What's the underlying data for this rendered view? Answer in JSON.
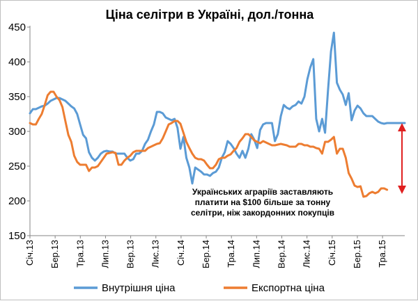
{
  "chart_data": {
    "type": "line",
    "title": "Ціна селітри в Україні, дол./тонна",
    "xlabel": "",
    "ylabel": "",
    "ylim": [
      150,
      450
    ],
    "y_ticks": [
      150,
      200,
      250,
      300,
      350,
      400,
      450
    ],
    "grid": false,
    "legend_position": "bottom",
    "x_tick_labels": [
      "Січ.13",
      "Бер.13",
      "Тра.13",
      "Лип.13",
      "Вер.13",
      "Лис.13",
      "Січ.14",
      "Бер.14",
      "Тра.14",
      "Лип.14",
      "Вер.14",
      "Лис.14",
      "Січ.15",
      "Бер.15",
      "Тра.15"
    ],
    "x_range_weeks": [
      0,
      127
    ],
    "series": [
      {
        "name": "Внутрішня ціна",
        "color": "#5B9BD5",
        "x": [
          0,
          1,
          2,
          3,
          4,
          5,
          6,
          7,
          8,
          9,
          10,
          11,
          12,
          13,
          14,
          15,
          16,
          17,
          18,
          19,
          20,
          21,
          22,
          23,
          24,
          25,
          26,
          27,
          28,
          29,
          30,
          31,
          32,
          33,
          34,
          35,
          36,
          37,
          38,
          39,
          40,
          41,
          42,
          43,
          44,
          45,
          46,
          47,
          48,
          49,
          50,
          51,
          52,
          53,
          54,
          55,
          56,
          57,
          58,
          59,
          60,
          61,
          62,
          63,
          64,
          65,
          66,
          67,
          68,
          69,
          70,
          71,
          72,
          73,
          74,
          75,
          76,
          77,
          78,
          79,
          80,
          81,
          82,
          83,
          84,
          85,
          86,
          87,
          88,
          89,
          90,
          91,
          92,
          93,
          94,
          95,
          96,
          97,
          98,
          99,
          100,
          101,
          102,
          103,
          104,
          105,
          106,
          107,
          108,
          109,
          110,
          111,
          112,
          113,
          114,
          115,
          116,
          117,
          118,
          119,
          120,
          121,
          122,
          123,
          124,
          125,
          126,
          127
        ],
        "values": [
          326,
          332,
          332,
          334,
          336,
          337,
          340,
          344,
          346,
          348,
          348,
          346,
          344,
          340,
          336,
          333,
          325,
          310,
          295,
          290,
          270,
          262,
          258,
          262,
          268,
          271,
          272,
          271,
          271,
          268,
          268,
          268,
          268,
          262,
          258,
          260,
          268,
          268,
          272,
          282,
          288,
          300,
          310,
          328,
          328,
          326,
          320,
          318,
          316,
          318,
          305,
          275,
          292,
          262,
          248,
          225,
          248,
          245,
          242,
          238,
          238,
          236,
          240,
          242,
          248,
          262,
          270,
          286,
          282,
          276,
          268,
          262,
          272,
          262,
          275,
          296,
          288,
          276,
          302,
          310,
          312,
          312,
          312,
          286,
          296,
          322,
          338,
          334,
          332,
          336,
          338,
          343,
          340,
          350,
          375,
          392,
          404,
          318,
          300,
          318,
          298,
          360,
          415,
          442,
          370,
          360,
          353,
          338,
          355,
          316,
          330,
          337,
          333,
          326,
          322,
          322,
          322,
          318,
          314,
          312,
          311,
          312,
          312,
          312,
          312,
          312,
          312,
          312
        ]
      },
      {
        "name": "Експортна ціна",
        "color": "#ED7D31",
        "x": [
          0,
          1,
          2,
          3,
          4,
          5,
          6,
          7,
          8,
          9,
          10,
          11,
          12,
          13,
          14,
          15,
          16,
          17,
          18,
          19,
          20,
          21,
          22,
          23,
          24,
          25,
          26,
          27,
          28,
          29,
          30,
          31,
          32,
          33,
          34,
          35,
          36,
          37,
          38,
          39,
          40,
          41,
          42,
          43,
          44,
          45,
          46,
          47,
          48,
          49,
          50,
          51,
          52,
          53,
          54,
          55,
          56,
          57,
          58,
          59,
          60,
          61,
          62,
          63,
          64,
          65,
          66,
          67,
          68,
          69,
          70,
          71,
          72,
          73,
          74,
          75,
          76,
          77,
          78,
          79,
          80,
          81,
          82,
          83,
          84,
          85,
          86,
          87,
          88,
          89,
          90,
          91,
          92,
          93,
          94,
          95,
          96,
          97,
          98,
          99,
          100,
          101,
          102,
          103,
          104,
          105,
          106,
          107,
          108,
          109,
          110,
          111,
          112,
          113,
          114,
          115,
          116,
          117,
          118,
          119,
          120,
          121
        ],
        "values": [
          312,
          310,
          310,
          318,
          325,
          338,
          352,
          357,
          357,
          350,
          345,
          335,
          315,
          295,
          285,
          265,
          256,
          252,
          252,
          252,
          243,
          248,
          248,
          250,
          256,
          262,
          268,
          269,
          270,
          269,
          252,
          252,
          258,
          262,
          265,
          270,
          272,
          272,
          272,
          272,
          276,
          278,
          280,
          282,
          283,
          290,
          300,
          310,
          312,
          315,
          315,
          311,
          298,
          285,
          276,
          268,
          262,
          260,
          260,
          258,
          252,
          247,
          247,
          252,
          260,
          262,
          262,
          265,
          267,
          272,
          276,
          285,
          290,
          296,
          296,
          292,
          287,
          285,
          283,
          286,
          284,
          282,
          280,
          280,
          281,
          282,
          281,
          280,
          278,
          278,
          278,
          282,
          282,
          280,
          280,
          278,
          278,
          276,
          275,
          268,
          285,
          285,
          288,
          292,
          268,
          275,
          275,
          262,
          240,
          232,
          222,
          220,
          221,
          206,
          207,
          211,
          213,
          211,
          213,
          218,
          218,
          216
        ]
      }
    ],
    "annotations": [
      {
        "text": "Українських аграріїв заставляють"
      },
      {
        "text": "платити  на $100  більше за тонну"
      },
      {
        "text": "селітри, ніж закордонних покупців"
      }
    ],
    "arrow": {
      "from_value": 310,
      "to_value": 212,
      "color": "#E02020"
    }
  }
}
